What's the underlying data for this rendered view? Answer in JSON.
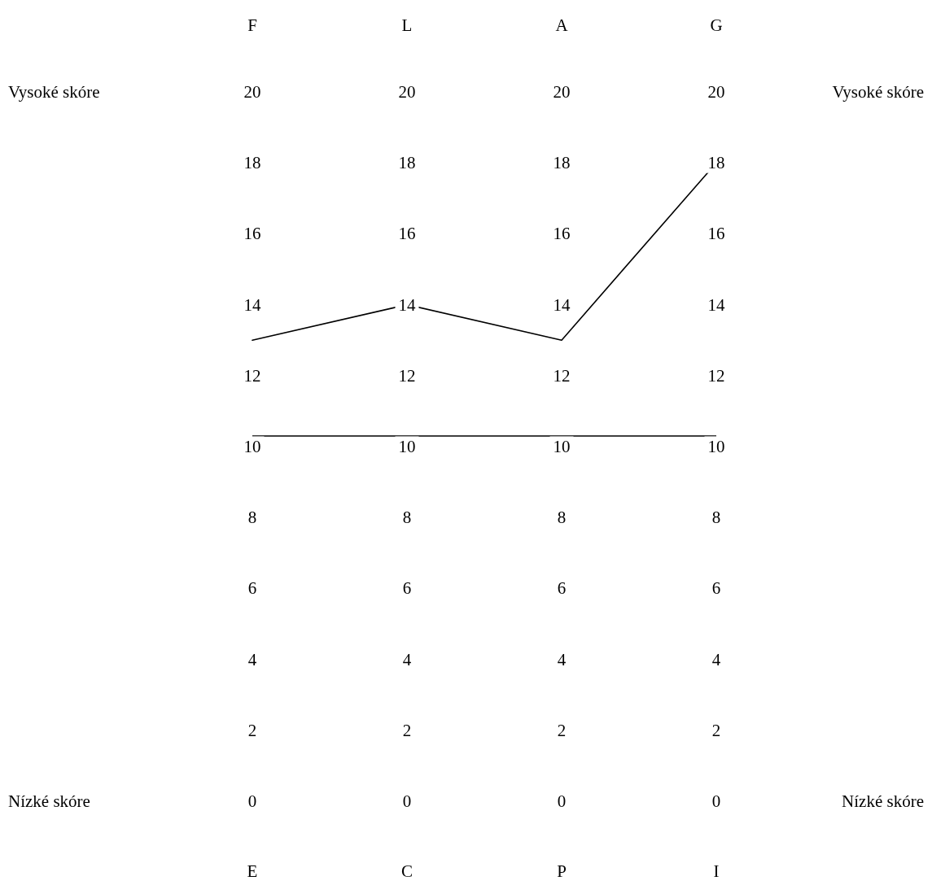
{
  "chart_data": {
    "type": "line",
    "categories": [
      "F",
      "L",
      "A",
      "G"
    ],
    "series": [
      {
        "color": "#000000",
        "values": [
          13,
          14,
          13,
          18
        ]
      }
    ],
    "ylim": [
      0,
      20
    ],
    "yticks": [
      0,
      2,
      4,
      6,
      8,
      10,
      12,
      14,
      16,
      18,
      20
    ],
    "y2lim": [
      0,
      20
    ],
    "y2ticks": [
      0,
      2,
      4,
      6,
      8,
      10,
      12,
      14,
      16,
      18,
      20
    ],
    "y3lim": [
      0,
      20
    ],
    "y3ticks": [
      0,
      2,
      4,
      6,
      8,
      10,
      12,
      14,
      16,
      18,
      20
    ],
    "line_style": "solid",
    "grid": false,
    "ref_lines": [
      {
        "axis": "y",
        "value": 10.3,
        "color": "#000000"
      }
    ],
    "annotations": [
      "Vysoké skóre",
      "Nízké skóre",
      "E",
      "C",
      "P",
      "I",
      "20",
      "18",
      "16",
      "14",
      "12",
      "10",
      "8",
      "6",
      "4",
      "2",
      "0"
    ]
  }
}
